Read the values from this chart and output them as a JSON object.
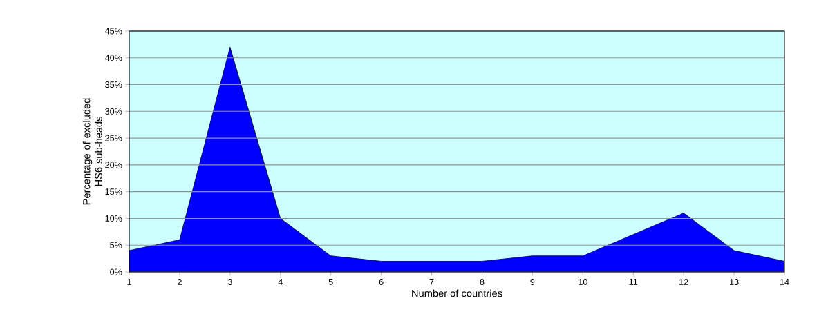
{
  "chart_data": {
    "type": "area",
    "xlabel": "Number of countries",
    "ylabel": "Percentage of excluded HS6 sub-heads",
    "x": [
      1,
      2,
      3,
      4,
      5,
      6,
      7,
      8,
      9,
      10,
      11,
      12,
      13,
      14
    ],
    "series": [
      {
        "color": "#0000ff",
        "values": [
          4,
          6,
          42,
          10,
          3,
          2,
          2,
          2,
          3,
          3,
          7,
          11,
          4,
          2
        ]
      }
    ],
    "xlim": [
      1,
      14
    ],
    "xticks": [
      1,
      2,
      3,
      4,
      5,
      6,
      7,
      8,
      9,
      10,
      11,
      12,
      13,
      14
    ],
    "ylim": [
      0,
      45
    ],
    "yticks": [
      {
        "value": 0,
        "label": "0%"
      },
      {
        "value": 5,
        "label": "5%"
      },
      {
        "value": 10,
        "label": "10%"
      },
      {
        "value": 15,
        "label": "15%"
      },
      {
        "value": 20,
        "label": "20%"
      },
      {
        "value": 25,
        "label": "25%"
      },
      {
        "value": 30,
        "label": "30%"
      },
      {
        "value": 35,
        "label": "35%"
      },
      {
        "value": 40,
        "label": "40%"
      },
      {
        "value": 45,
        "label": "45%"
      }
    ],
    "grid": "y"
  }
}
